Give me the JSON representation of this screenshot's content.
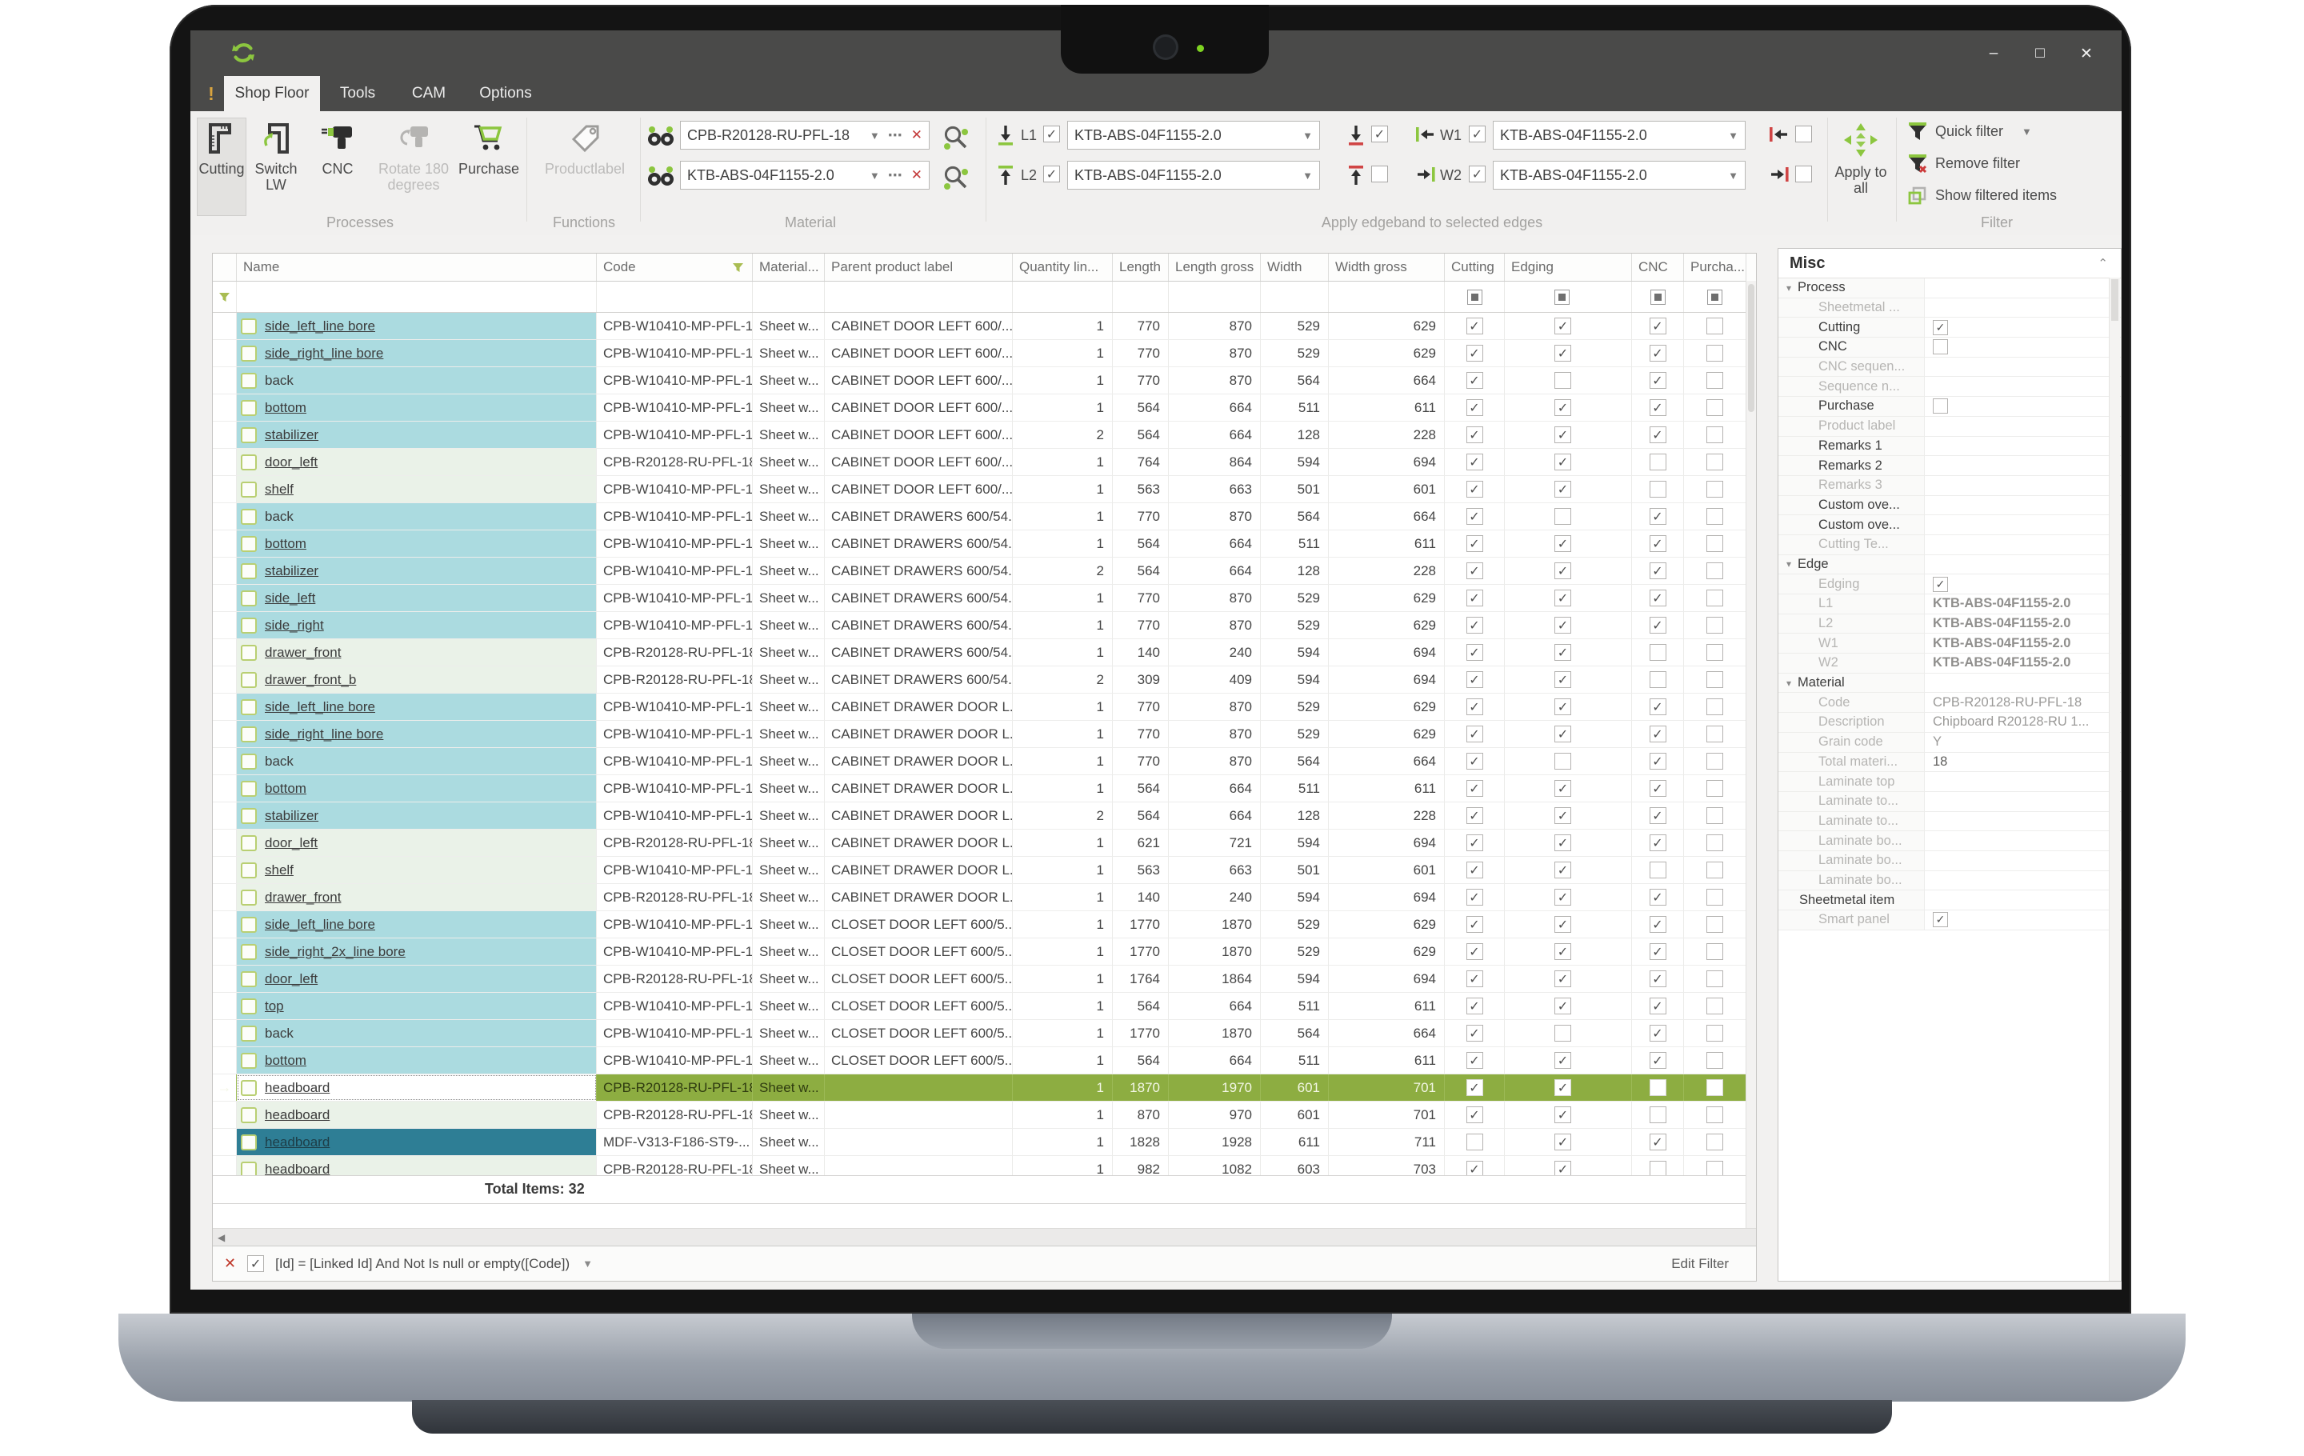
{
  "colors": {
    "accent_green": "#8cc63f",
    "row_green": "#8dad41",
    "row_cyan": "#abdbe0",
    "row_pale": "#eaf2e8",
    "row_teal": "#2e7e95",
    "titlebar": "#4a4a49"
  },
  "window": {
    "badge": "!",
    "tabs": [
      "Shop Floor",
      "Tools",
      "CAM",
      "Options"
    ],
    "active_tab": "Shop Floor",
    "controls": [
      "–",
      "□",
      "✕"
    ]
  },
  "ribbon": {
    "processes": {
      "caption": "Processes",
      "buttons": [
        {
          "label": "Cutting",
          "state": "active"
        },
        {
          "label": "Switch LW",
          "state": "normal"
        },
        {
          "label": "CNC",
          "state": "normal"
        },
        {
          "label": "Rotate 180 degrees",
          "state": "disabled"
        },
        {
          "label": "Purchase",
          "state": "normal"
        }
      ]
    },
    "functions": {
      "caption": "Functions",
      "buttons": [
        {
          "label": "Productlabel",
          "state": "disabled"
        }
      ]
    },
    "material": {
      "caption": "Material",
      "rows": [
        {
          "value": "CPB-R20128-RU-PFL-18"
        },
        {
          "value": "KTB-ABS-04F1155-2.0"
        }
      ]
    },
    "edgeband": {
      "caption": "Apply edgeband to selected edges",
      "rows": [
        {
          "label": "L1",
          "checked": true,
          "value": "KTB-ABS-04F1155-2.0",
          "mid_checked": true,
          "w_label": "W1",
          "w_checked": true,
          "w_value": "KTB-ABS-04F1155-2.0",
          "end_checked": false
        },
        {
          "label": "L2",
          "checked": true,
          "value": "KTB-ABS-04F1155-2.0",
          "mid_checked": false,
          "w_label": "W2",
          "w_checked": true,
          "w_value": "KTB-ABS-04F1155-2.0",
          "end_checked": false
        }
      ]
    },
    "apply_all": {
      "label": "Apply to all"
    },
    "filter": {
      "caption": "Filter",
      "items": [
        {
          "label": "Quick filter",
          "dropdown": true
        },
        {
          "label": "Remove filter",
          "dropdown": false
        },
        {
          "label": "Show filtered items",
          "dropdown": false
        }
      ]
    }
  },
  "table": {
    "columns": [
      "",
      "Name",
      "Code",
      "Material...",
      "Parent product label",
      "Quantity lin...",
      "Length",
      "Length gross",
      "Width",
      "Width gross",
      "Cutting",
      "Edging",
      "CNC",
      "Purcha..."
    ],
    "total_label": "Total Items: 32",
    "rows": [
      {
        "n": "side_left_line bore",
        "c": "CPB-W10410-MP-PFL-18",
        "m": "Sheet w...",
        "p": "CABINET DOOR LEFT 600/...",
        "q": "1",
        "l": "770",
        "lg": "870",
        "w": "529",
        "wg": "629",
        "k": [
          1,
          1,
          1,
          0
        ],
        "b": "c",
        "u": 1
      },
      {
        "n": "side_right_line bore",
        "c": "CPB-W10410-MP-PFL-18",
        "m": "Sheet w...",
        "p": "CABINET DOOR LEFT 600/...",
        "q": "1",
        "l": "770",
        "lg": "870",
        "w": "529",
        "wg": "629",
        "k": [
          1,
          1,
          1,
          0
        ],
        "b": "c",
        "u": 1
      },
      {
        "n": "back",
        "c": "CPB-W10410-MP-PFL-18",
        "m": "Sheet w...",
        "p": "CABINET DOOR LEFT 600/...",
        "q": "1",
        "l": "770",
        "lg": "870",
        "w": "564",
        "wg": "664",
        "k": [
          1,
          0,
          1,
          0
        ],
        "b": "c",
        "u": 0
      },
      {
        "n": "bottom",
        "c": "CPB-W10410-MP-PFL-18",
        "m": "Sheet w...",
        "p": "CABINET DOOR LEFT 600/...",
        "q": "1",
        "l": "564",
        "lg": "664",
        "w": "511",
        "wg": "611",
        "k": [
          1,
          1,
          1,
          0
        ],
        "b": "c",
        "u": 1
      },
      {
        "n": "stabilizer",
        "c": "CPB-W10410-MP-PFL-18",
        "m": "Sheet w...",
        "p": "CABINET DOOR LEFT 600/...",
        "q": "2",
        "l": "564",
        "lg": "664",
        "w": "128",
        "wg": "228",
        "k": [
          1,
          1,
          1,
          0
        ],
        "b": "c",
        "u": 1
      },
      {
        "n": "door_left",
        "c": "CPB-R20128-RU-PFL-18",
        "m": "Sheet w...",
        "p": "CABINET DOOR LEFT 600/...",
        "q": "1",
        "l": "764",
        "lg": "864",
        "w": "594",
        "wg": "694",
        "k": [
          1,
          1,
          0,
          0
        ],
        "b": "p",
        "u": 1
      },
      {
        "n": "shelf",
        "c": "CPB-W10410-MP-PFL-18",
        "m": "Sheet w...",
        "p": "CABINET DOOR LEFT 600/...",
        "q": "1",
        "l": "563",
        "lg": "663",
        "w": "501",
        "wg": "601",
        "k": [
          1,
          1,
          0,
          0
        ],
        "b": "p",
        "u": 1
      },
      {
        "n": "back",
        "c": "CPB-W10410-MP-PFL-18",
        "m": "Sheet w...",
        "p": "CABINET DRAWERS 600/54...",
        "q": "1",
        "l": "770",
        "lg": "870",
        "w": "564",
        "wg": "664",
        "k": [
          1,
          0,
          1,
          0
        ],
        "b": "c",
        "u": 0
      },
      {
        "n": "bottom",
        "c": "CPB-W10410-MP-PFL-18",
        "m": "Sheet w...",
        "p": "CABINET DRAWERS 600/54...",
        "q": "1",
        "l": "564",
        "lg": "664",
        "w": "511",
        "wg": "611",
        "k": [
          1,
          1,
          1,
          0
        ],
        "b": "c",
        "u": 1
      },
      {
        "n": "stabilizer",
        "c": "CPB-W10410-MP-PFL-18",
        "m": "Sheet w...",
        "p": "CABINET DRAWERS 600/54...",
        "q": "2",
        "l": "564",
        "lg": "664",
        "w": "128",
        "wg": "228",
        "k": [
          1,
          1,
          1,
          0
        ],
        "b": "c",
        "u": 1
      },
      {
        "n": "side_left",
        "c": "CPB-W10410-MP-PFL-18",
        "m": "Sheet w...",
        "p": "CABINET DRAWERS 600/54...",
        "q": "1",
        "l": "770",
        "lg": "870",
        "w": "529",
        "wg": "629",
        "k": [
          1,
          1,
          1,
          0
        ],
        "b": "c",
        "u": 1
      },
      {
        "n": "side_right",
        "c": "CPB-W10410-MP-PFL-18",
        "m": "Sheet w...",
        "p": "CABINET DRAWERS 600/54...",
        "q": "1",
        "l": "770",
        "lg": "870",
        "w": "529",
        "wg": "629",
        "k": [
          1,
          1,
          1,
          0
        ],
        "b": "c",
        "u": 1
      },
      {
        "n": "drawer_front",
        "c": "CPB-R20128-RU-PFL-18",
        "m": "Sheet w...",
        "p": "CABINET DRAWERS 600/54...",
        "q": "1",
        "l": "140",
        "lg": "240",
        "w": "594",
        "wg": "694",
        "k": [
          1,
          1,
          0,
          0
        ],
        "b": "p",
        "u": 1
      },
      {
        "n": "drawer_front_b",
        "c": "CPB-R20128-RU-PFL-18",
        "m": "Sheet w...",
        "p": "CABINET DRAWERS 600/54...",
        "q": "2",
        "l": "309",
        "lg": "409",
        "w": "594",
        "wg": "694",
        "k": [
          1,
          1,
          0,
          0
        ],
        "b": "p",
        "u": 1
      },
      {
        "n": "side_left_line bore",
        "c": "CPB-W10410-MP-PFL-18",
        "m": "Sheet w...",
        "p": "CABINET DRAWER DOOR L...",
        "q": "1",
        "l": "770",
        "lg": "870",
        "w": "529",
        "wg": "629",
        "k": [
          1,
          1,
          1,
          0
        ],
        "b": "c",
        "u": 1
      },
      {
        "n": "side_right_line bore",
        "c": "CPB-W10410-MP-PFL-18",
        "m": "Sheet w...",
        "p": "CABINET DRAWER DOOR L...",
        "q": "1",
        "l": "770",
        "lg": "870",
        "w": "529",
        "wg": "629",
        "k": [
          1,
          1,
          1,
          0
        ],
        "b": "c",
        "u": 1
      },
      {
        "n": "back",
        "c": "CPB-W10410-MP-PFL-18",
        "m": "Sheet w...",
        "p": "CABINET DRAWER DOOR L...",
        "q": "1",
        "l": "770",
        "lg": "870",
        "w": "564",
        "wg": "664",
        "k": [
          1,
          0,
          1,
          0
        ],
        "b": "c",
        "u": 0
      },
      {
        "n": "bottom",
        "c": "CPB-W10410-MP-PFL-18",
        "m": "Sheet w...",
        "p": "CABINET DRAWER DOOR L...",
        "q": "1",
        "l": "564",
        "lg": "664",
        "w": "511",
        "wg": "611",
        "k": [
          1,
          1,
          1,
          0
        ],
        "b": "c",
        "u": 1
      },
      {
        "n": "stabilizer",
        "c": "CPB-W10410-MP-PFL-18",
        "m": "Sheet w...",
        "p": "CABINET DRAWER DOOR L...",
        "q": "2",
        "l": "564",
        "lg": "664",
        "w": "128",
        "wg": "228",
        "k": [
          1,
          1,
          1,
          0
        ],
        "b": "c",
        "u": 1
      },
      {
        "n": "door_left",
        "c": "CPB-R20128-RU-PFL-18",
        "m": "Sheet w...",
        "p": "CABINET DRAWER DOOR L...",
        "q": "1",
        "l": "621",
        "lg": "721",
        "w": "594",
        "wg": "694",
        "k": [
          1,
          1,
          1,
          0
        ],
        "b": "p",
        "u": 1
      },
      {
        "n": "shelf",
        "c": "CPB-W10410-MP-PFL-18",
        "m": "Sheet w...",
        "p": "CABINET DRAWER DOOR L...",
        "q": "1",
        "l": "563",
        "lg": "663",
        "w": "501",
        "wg": "601",
        "k": [
          1,
          1,
          0,
          0
        ],
        "b": "p",
        "u": 1
      },
      {
        "n": "drawer_front",
        "c": "CPB-R20128-RU-PFL-18",
        "m": "Sheet w...",
        "p": "CABINET DRAWER DOOR L...",
        "q": "1",
        "l": "140",
        "lg": "240",
        "w": "594",
        "wg": "694",
        "k": [
          1,
          1,
          1,
          0
        ],
        "b": "p",
        "u": 1
      },
      {
        "n": "side_left_line bore",
        "c": "CPB-W10410-MP-PFL-18",
        "m": "Sheet w...",
        "p": "CLOSET DOOR LEFT 600/5...",
        "q": "1",
        "l": "1770",
        "lg": "1870",
        "w": "529",
        "wg": "629",
        "k": [
          1,
          1,
          1,
          0
        ],
        "b": "c",
        "u": 1
      },
      {
        "n": "side_right_2x_line bore",
        "c": "CPB-W10410-MP-PFL-18",
        "m": "Sheet w...",
        "p": "CLOSET DOOR LEFT 600/5...",
        "q": "1",
        "l": "1770",
        "lg": "1870",
        "w": "529",
        "wg": "629",
        "k": [
          1,
          1,
          1,
          0
        ],
        "b": "c",
        "u": 1
      },
      {
        "n": "door_left",
        "c": "CPB-R20128-RU-PFL-18",
        "m": "Sheet w...",
        "p": "CLOSET DOOR LEFT 600/5...",
        "q": "1",
        "l": "1764",
        "lg": "1864",
        "w": "594",
        "wg": "694",
        "k": [
          1,
          1,
          1,
          0
        ],
        "b": "c",
        "u": 1
      },
      {
        "n": "top",
        "c": "CPB-W10410-MP-PFL-18",
        "m": "Sheet w...",
        "p": "CLOSET DOOR LEFT 600/5...",
        "q": "1",
        "l": "564",
        "lg": "664",
        "w": "511",
        "wg": "611",
        "k": [
          1,
          1,
          1,
          0
        ],
        "b": "c",
        "u": 1
      },
      {
        "n": "back",
        "c": "CPB-W10410-MP-PFL-18",
        "m": "Sheet w...",
        "p": "CLOSET DOOR LEFT 600/5...",
        "q": "1",
        "l": "1770",
        "lg": "1870",
        "w": "564",
        "wg": "664",
        "k": [
          1,
          0,
          1,
          0
        ],
        "b": "c",
        "u": 0
      },
      {
        "n": "bottom",
        "c": "CPB-W10410-MP-PFL-18",
        "m": "Sheet w...",
        "p": "CLOSET DOOR LEFT 600/5...",
        "q": "1",
        "l": "564",
        "lg": "664",
        "w": "511",
        "wg": "611",
        "k": [
          1,
          1,
          1,
          0
        ],
        "b": "c",
        "u": 1
      },
      {
        "n": "headboard",
        "c": "CPB-R20128-RU-PFL-18",
        "m": "Sheet w...",
        "p": "",
        "q": "1",
        "l": "1870",
        "lg": "1970",
        "w": "601",
        "wg": "701",
        "k": [
          1,
          1,
          0,
          0
        ],
        "b": "w",
        "u": 1,
        "st": "cur"
      },
      {
        "n": "headboard",
        "c": "CPB-R20128-RU-PFL-18",
        "m": "Sheet w...",
        "p": "",
        "q": "1",
        "l": "870",
        "lg": "970",
        "w": "601",
        "wg": "701",
        "k": [
          1,
          1,
          0,
          0
        ],
        "b": "p",
        "u": 1
      },
      {
        "n": "headboard",
        "c": "MDF-V313-F186-ST9-...",
        "m": "Sheet w...",
        "p": "",
        "q": "1",
        "l": "1828",
        "lg": "1928",
        "w": "611",
        "wg": "711",
        "k": [
          0,
          1,
          1,
          0
        ],
        "b": "s",
        "u": 1,
        "st": "sel"
      },
      {
        "n": "headboard",
        "c": "CPB-R20128-RU-PFL-18",
        "m": "Sheet w...",
        "p": "",
        "q": "1",
        "l": "982",
        "lg": "1082",
        "w": "603",
        "wg": "703",
        "k": [
          1,
          1,
          0,
          0
        ],
        "b": "p",
        "u": 1
      }
    ]
  },
  "filter_bar": {
    "clear": "✕",
    "checked": true,
    "expression": "[Id] = [Linked Id] And Not Is null or empty([Code])",
    "edit_label": "Edit Filter"
  },
  "panel": {
    "title": "Misc",
    "rows": [
      {
        "label": "Process",
        "type": "group"
      },
      {
        "label": "Sheetmetal ...",
        "dis": 1
      },
      {
        "label": "Cutting",
        "chk": 1
      },
      {
        "label": "CNC",
        "chk": 0
      },
      {
        "label": "CNC sequen...",
        "dis": 1
      },
      {
        "label": "Sequence n...",
        "dis": 1
      },
      {
        "label": "Purchase",
        "chk": 0
      },
      {
        "label": "Product label",
        "dis": 1
      },
      {
        "label": "Remarks 1"
      },
      {
        "label": "Remarks 2"
      },
      {
        "label": "Remarks 3",
        "dis": 1
      },
      {
        "label": "Custom ove..."
      },
      {
        "label": "Custom ove..."
      },
      {
        "label": "Cutting Te...",
        "dis": 1
      },
      {
        "label": "Edge",
        "type": "group"
      },
      {
        "label": "Edging",
        "dis": 1,
        "chk": 1
      },
      {
        "label": "L1",
        "dis": 1,
        "val": "KTB-ABS-04F1155-2.0",
        "bold": 1
      },
      {
        "label": "L2",
        "dis": 1,
        "val": "KTB-ABS-04F1155-2.0",
        "bold": 1
      },
      {
        "label": "W1",
        "dis": 1,
        "val": "KTB-ABS-04F1155-2.0",
        "bold": 1
      },
      {
        "label": "W2",
        "dis": 1,
        "val": "KTB-ABS-04F1155-2.0",
        "bold": 1
      },
      {
        "label": "Material",
        "type": "group"
      },
      {
        "label": "Code",
        "dis": 1,
        "val": "CPB-R20128-RU-PFL-18"
      },
      {
        "label": "Description",
        "dis": 1,
        "val": "Chipboard R20128-RU 1..."
      },
      {
        "label": "Grain code",
        "dis": 1,
        "val": "Y"
      },
      {
        "label": "Total materi...",
        "dis": 1,
        "val": "18",
        "dark": 1
      },
      {
        "label": "Laminate top",
        "dis": 1
      },
      {
        "label": "Laminate to...",
        "dis": 1
      },
      {
        "label": "Laminate to...",
        "dis": 1
      },
      {
        "label": "Laminate bo...",
        "dis": 1
      },
      {
        "label": "Laminate bo...",
        "dis": 1
      },
      {
        "label": "Laminate bo...",
        "dis": 1
      },
      {
        "label": "Sheetmetal item",
        "type": "root"
      },
      {
        "label": "Smart panel",
        "dis": 1,
        "chk": 1
      }
    ]
  }
}
